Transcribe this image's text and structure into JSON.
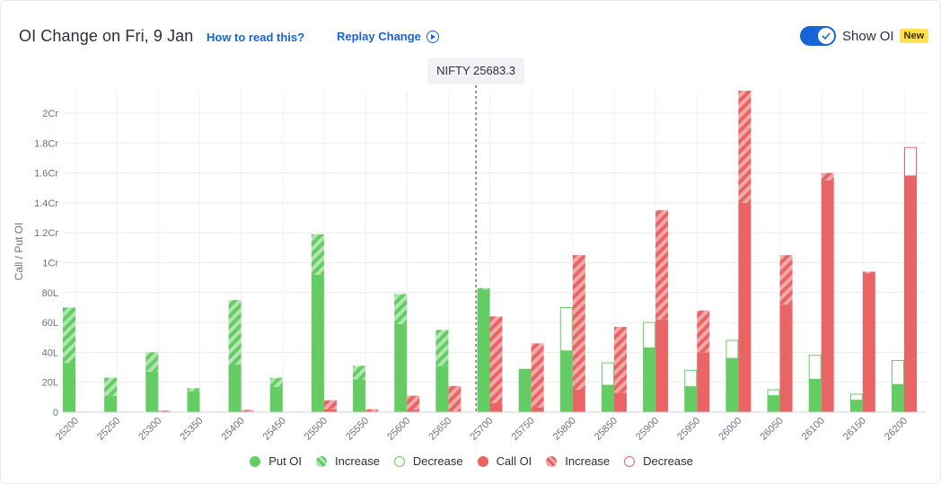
{
  "header": {
    "title": "OI Change on Fri, 9 Jan",
    "how_to_read": "How to read this?",
    "replay": "Replay Change",
    "show_oi_label": "Show OI",
    "new_badge": "New",
    "show_oi_enabled": true
  },
  "colors": {
    "put": "#63cd63",
    "put_light": "#b2e5b2",
    "call": "#e96565",
    "call_light": "#f1a9a9",
    "grid": "#ececec",
    "axis_text": "#6b7280"
  },
  "chart_data": {
    "type": "bar",
    "ylabel": "Call / Put OI",
    "y_ticks": [
      {
        "value": 0,
        "label": "0"
      },
      {
        "value": 200000,
        "label": "20L"
      },
      {
        "value": 400000,
        "label": "40L"
      },
      {
        "value": 600000,
        "label": "60L"
      },
      {
        "value": 800000,
        "label": "80L"
      },
      {
        "value": 1000000,
        "label": "1Cr"
      },
      {
        "value": 1200000,
        "label": "1.2Cr"
      },
      {
        "value": 1400000,
        "label": "1.4Cr"
      },
      {
        "value": 1600000,
        "label": "1.6Cr"
      },
      {
        "value": 1800000,
        "label": "1.8Cr"
      },
      {
        "value": 2000000,
        "label": "2Cr"
      }
    ],
    "ylim": [
      0,
      2150000
    ],
    "grid": true,
    "spot": {
      "label": "NIFTY 25683.3",
      "value": 25683.3
    },
    "strikes": [
      "25200",
      "25250",
      "25300",
      "25350",
      "25400",
      "25450",
      "25500",
      "25550",
      "25600",
      "25650",
      "25700",
      "25750",
      "25800",
      "25850",
      "25900",
      "25950",
      "26000",
      "26050",
      "26100",
      "26150",
      "26200"
    ],
    "series": [
      {
        "name": "Put OI",
        "values": [
          330000,
          110000,
          270000,
          140000,
          320000,
          170000,
          920000,
          220000,
          590000,
          310000,
          820000,
          290000,
          410000,
          180000,
          430000,
          170000,
          360000,
          110000,
          220000,
          80000,
          185000
        ]
      },
      {
        "name": "Increase",
        "values": [
          370000,
          120000,
          130000,
          20000,
          430000,
          60000,
          270000,
          90000,
          200000,
          240000,
          10000,
          0,
          0,
          0,
          0,
          0,
          0,
          0,
          0,
          0,
          0
        ]
      },
      {
        "name": "Decrease",
        "values": [
          0,
          0,
          0,
          0,
          0,
          0,
          0,
          0,
          0,
          0,
          0,
          0,
          290000,
          150000,
          170000,
          110000,
          120000,
          40000,
          160000,
          40000,
          160000
        ]
      },
      {
        "name": "Call OI",
        "values": [
          0,
          0,
          0,
          0,
          5000,
          0,
          20000,
          5000,
          15000,
          5000,
          60000,
          30000,
          150000,
          130000,
          620000,
          400000,
          1400000,
          720000,
          1550000,
          930000,
          1580000
        ]
      },
      {
        "name": "Increase",
        "values": [
          0,
          0,
          10000,
          0,
          10000,
          0,
          60000,
          15000,
          95000,
          170000,
          580000,
          430000,
          900000,
          440000,
          730000,
          280000,
          750000,
          330000,
          50000,
          10000,
          0
        ]
      },
      {
        "name": "Decrease",
        "values": [
          0,
          0,
          0,
          0,
          0,
          0,
          0,
          0,
          0,
          0,
          0,
          0,
          0,
          0,
          0,
          0,
          0,
          0,
          0,
          0,
          190000
        ]
      }
    ],
    "legend": [
      "Put OI",
      "Increase",
      "Decrease",
      "Call OI",
      "Increase",
      "Decrease"
    ],
    "legend_position": "bottom"
  }
}
